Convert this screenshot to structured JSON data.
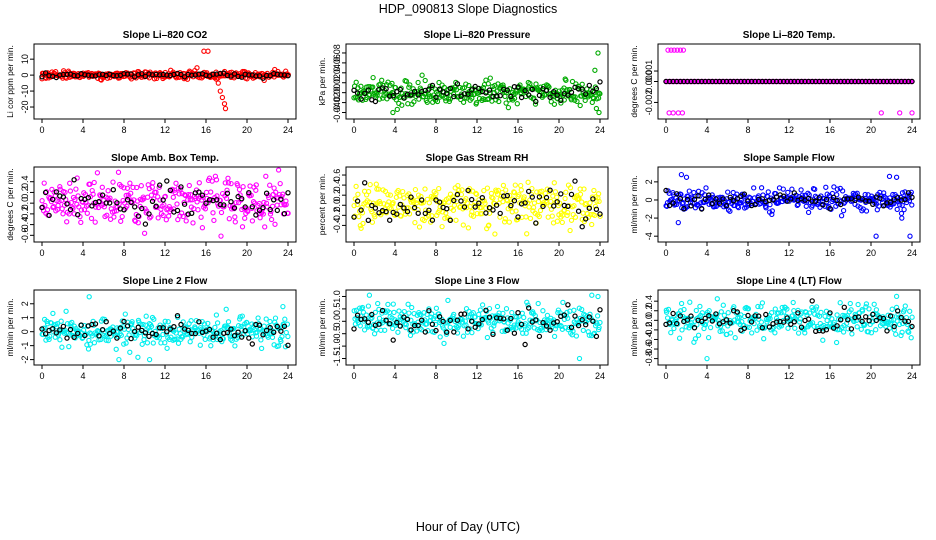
{
  "figure": {
    "title": "HDP_090813  Slope Diagnostics",
    "xlabel": "Hour of Day (UTC)"
  },
  "chart_data": [
    {
      "type": "scatter",
      "title": "Slope Li–820 CO2",
      "ylabel": "Li cor ppm per min.",
      "color": "#ff0000",
      "xlim": [
        0,
        24
      ],
      "ylim": [
        -25,
        17
      ],
      "xticks": [
        0,
        4,
        8,
        12,
        16,
        20,
        24
      ],
      "yticks": [
        -20,
        -10,
        0,
        10
      ],
      "tick_labels": [
        "-20",
        "-10",
        "0",
        "10"
      ],
      "noise_sd": 1.2,
      "black_sd": 0.7,
      "extra_points": [
        [
          15.8,
          15
        ],
        [
          16.2,
          15
        ],
        [
          17.2,
          -5
        ],
        [
          17.4,
          -10
        ],
        [
          17.6,
          -14
        ],
        [
          17.8,
          -18
        ],
        [
          17.9,
          -21
        ],
        [
          17.0,
          -2.5
        ]
      ]
    },
    {
      "type": "scatter",
      "title": "Slope Li–820 Pressure",
      "ylabel": "kPa per min.",
      "color": "#00aa00",
      "xlim": [
        0,
        24
      ],
      "ylim": [
        -0.045,
        0.09
      ],
      "xticks": [
        0,
        4,
        8,
        12,
        16,
        20,
        24
      ],
      "yticks": [
        -0.04,
        -0.02,
        0.0,
        0.02,
        0.04,
        0.06,
        0.08
      ],
      "tick_labels": [
        "-0.04",
        "-0.02",
        "0.00",
        "0.02",
        "0.04",
        "0.06",
        "0.08"
      ],
      "noise_sd": 0.012,
      "black_sd": 0.008,
      "extra_points": [
        [
          23.8,
          0.08
        ],
        [
          23.5,
          0.045
        ],
        [
          23.9,
          -0.04
        ],
        [
          3.8,
          -0.04
        ]
      ]
    },
    {
      "type": "scatter",
      "title": "Slope Li–820 Temp.",
      "ylabel": "degrees C per min.",
      "color": "#ff00ff",
      "xlim": [
        0,
        24
      ],
      "ylim": [
        -0.0032,
        0.0032
      ],
      "xticks": [
        0,
        4,
        8,
        12,
        16,
        20,
        24
      ],
      "yticks": [
        -0.002,
        0.0,
        0.001
      ],
      "tick_labels": [
        "-0.002",
        "0.000",
        "0.001"
      ],
      "noise_sd": 0.0,
      "black_sd": 0.0,
      "extra_points": [
        [
          0.2,
          0.003
        ],
        [
          0.5,
          0.003
        ],
        [
          0.8,
          0.003
        ],
        [
          1.1,
          0.003
        ],
        [
          1.4,
          0.003
        ],
        [
          1.7,
          0.003
        ],
        [
          0.3,
          -0.003
        ],
        [
          0.7,
          -0.003
        ],
        [
          1.2,
          -0.003
        ],
        [
          1.6,
          -0.003
        ],
        [
          21.0,
          -0.003
        ],
        [
          22.8,
          -0.003
        ],
        [
          24.0,
          -0.003
        ]
      ]
    },
    {
      "type": "scatter",
      "title": "Slope Amb. Box Temp.",
      "ylabel": "degrees C per min.",
      "color": "#ff00ff",
      "xlim": [
        0,
        24
      ],
      "ylim": [
        -0.65,
        0.6
      ],
      "xticks": [
        0,
        4,
        8,
        12,
        16,
        20,
        24
      ],
      "yticks": [
        -0.6,
        -0.4,
        -0.2,
        0.0,
        0.2,
        0.4
      ],
      "tick_labels": [
        "-0.6",
        "-0.4",
        "-0.2",
        "0.0",
        "0.2",
        "0.4"
      ],
      "noise_sd": 0.22,
      "black_sd": 0.15,
      "extra_points": []
    },
    {
      "type": "scatter",
      "title": "Slope Gas Stream RH",
      "ylabel": "percent per min.",
      "color": "#ffff00",
      "xlim": [
        0,
        24
      ],
      "ylim": [
        -0.65,
        0.68
      ],
      "xticks": [
        0,
        4,
        8,
        12,
        16,
        20,
        24
      ],
      "yticks": [
        -0.4,
        -0.2,
        0.0,
        0.2,
        0.4,
        0.6
      ],
      "tick_labels": [
        "-0.4",
        "-0.2",
        "0.0",
        "0.2",
        "0.4",
        "0.6"
      ],
      "noise_sd": 0.22,
      "black_sd": 0.18,
      "extra_points": []
    },
    {
      "type": "scatter",
      "title": "Slope Sample Flow",
      "ylabel": "ml/min per min.",
      "color": "#0000ff",
      "xlim": [
        0,
        24
      ],
      "ylim": [
        -4.2,
        3.2
      ],
      "xticks": [
        0,
        4,
        8,
        12,
        16,
        20,
        24
      ],
      "yticks": [
        -4,
        -2,
        0,
        2
      ],
      "tick_labels": [
        "-4",
        "-2",
        "0",
        "2"
      ],
      "noise_sd": 0.6,
      "black_sd": 0.5,
      "extra_points": [
        [
          1.5,
          2.8
        ],
        [
          2.0,
          2.5
        ],
        [
          1.2,
          -2.5
        ],
        [
          20.5,
          -4.0
        ],
        [
          23.8,
          -4.0
        ],
        [
          22.5,
          2.5
        ],
        [
          23.0,
          -2.0
        ],
        [
          21.8,
          2.6
        ]
      ]
    },
    {
      "type": "scatter",
      "title": "Slope Line 2 Flow",
      "ylabel": "ml/min per min.",
      "color": "#00eeee",
      "xlim": [
        0,
        24
      ],
      "ylim": [
        -2.1,
        2.7
      ],
      "xticks": [
        0,
        4,
        8,
        12,
        16,
        20,
        24
      ],
      "yticks": [
        -2,
        -1,
        0,
        1,
        2
      ],
      "tick_labels": [
        "-2",
        "-1",
        "0",
        "1",
        "2"
      ],
      "noise_sd": 0.55,
      "black_sd": 0.4,
      "extra_points": [
        [
          4.6,
          2.5
        ],
        [
          7.5,
          -2.0
        ],
        [
          10.5,
          -2.0
        ],
        [
          23.5,
          1.8
        ]
      ]
    },
    {
      "type": "scatter",
      "title": "Slope Line 3 Flow",
      "ylabel": "ml/min per min.",
      "color": "#00eeee",
      "xlim": [
        0,
        24
      ],
      "ylim": [
        -1.6,
        1.1
      ],
      "xticks": [
        0,
        4,
        8,
        12,
        16,
        20,
        24
      ],
      "yticks": [
        -1.5,
        -1.0,
        -0.5,
        0.0,
        0.5,
        1.0
      ],
      "tick_labels": [
        "-1.5",
        "-1.0",
        "-0.5",
        "0.0",
        "0.5",
        "1.0"
      ],
      "noise_sd": 0.3,
      "black_sd": 0.3,
      "extra_points": [
        [
          1.5,
          1.05
        ],
        [
          23.2,
          1.05
        ],
        [
          23.8,
          1.0
        ],
        [
          22.0,
          -1.5
        ]
      ]
    },
    {
      "type": "scatter",
      "title": "Slope Line 4 (LT) Flow",
      "ylabel": "ml/min per min.",
      "color": "#00eeee",
      "xlim": [
        0,
        24
      ],
      "ylim": [
        -0.85,
        0.55
      ],
      "xticks": [
        0,
        4,
        8,
        12,
        16,
        20,
        24
      ],
      "yticks": [
        -0.8,
        -0.6,
        -0.4,
        -0.2,
        0.0,
        0.2,
        0.4
      ],
      "tick_labels": [
        "-0.8",
        "-0.6",
        "-0.4",
        "-0.2",
        "0.0",
        "0.2",
        "0.4"
      ],
      "noise_sd": 0.17,
      "black_sd": 0.12,
      "extra_points": [
        [
          4.0,
          -0.8
        ],
        [
          22.5,
          0.5
        ],
        [
          5.0,
          0.45
        ]
      ]
    }
  ]
}
